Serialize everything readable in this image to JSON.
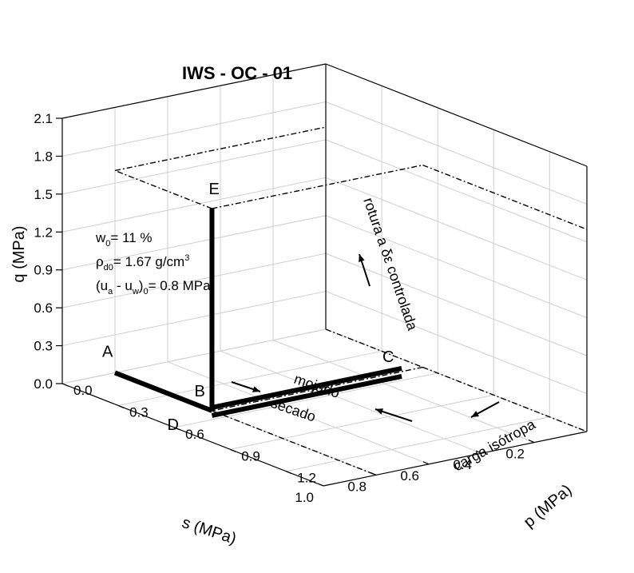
{
  "chart_data": {
    "type": "line",
    "title": "IWS - OC - 01",
    "axes": {
      "p": {
        "label": "p  (MPa)",
        "ticks": [
          "0.0",
          "0.3",
          "0.6",
          "0.9",
          "1.2"
        ],
        "range": [
          0,
          1.4
        ]
      },
      "s": {
        "label": "s (MPa)",
        "ticks": [
          "0.2",
          "0.4",
          "0.6",
          "0.8",
          "1.0"
        ],
        "range": [
          0,
          1.0
        ]
      },
      "q": {
        "label": "q (MPa)",
        "ticks": [
          "0.0",
          "0.3",
          "0.6",
          "0.9",
          "1.2",
          "1.5",
          "1.8",
          "2.1"
        ],
        "range": [
          0,
          2.1
        ]
      }
    },
    "points": [
      {
        "name": "A",
        "p": 0.0,
        "s": 0.8,
        "q": 0.0
      },
      {
        "name": "B",
        "p": 0.52,
        "s": 0.8,
        "q": 0.0
      },
      {
        "name": "C",
        "p": 0.52,
        "s": 0.08,
        "q": 0.0
      },
      {
        "name": "D",
        "p": 0.52,
        "s": 0.8,
        "q": 0.0
      },
      {
        "name": "E",
        "p": 0.52,
        "s": 0.8,
        "q": 1.6
      }
    ],
    "stages": [
      {
        "label": "carga isótropa",
        "from": "A",
        "to": "B"
      },
      {
        "label": "mojado",
        "from": "B",
        "to": "C"
      },
      {
        "label": "secado",
        "from": "C",
        "to": "D"
      },
      {
        "label": "rotura a δε controlada",
        "from": "D",
        "to": "E"
      }
    ],
    "annotations": {
      "w0": "w",
      "w0_sub": "0",
      "w0_val": "= 11 %",
      "rho": "ρ",
      "rho_sub": "d0",
      "rho_val": "= 1.67 g/cm",
      "rho_sup": "3",
      "suc_a": "(u",
      "suc_a_sub": "a",
      "suc_mid": " - u",
      "suc_w_sub": "w",
      "suc_close": ")",
      "suc_0_sub": "0",
      "suc_val": "= 0.8 MPa"
    },
    "grid": true
  }
}
